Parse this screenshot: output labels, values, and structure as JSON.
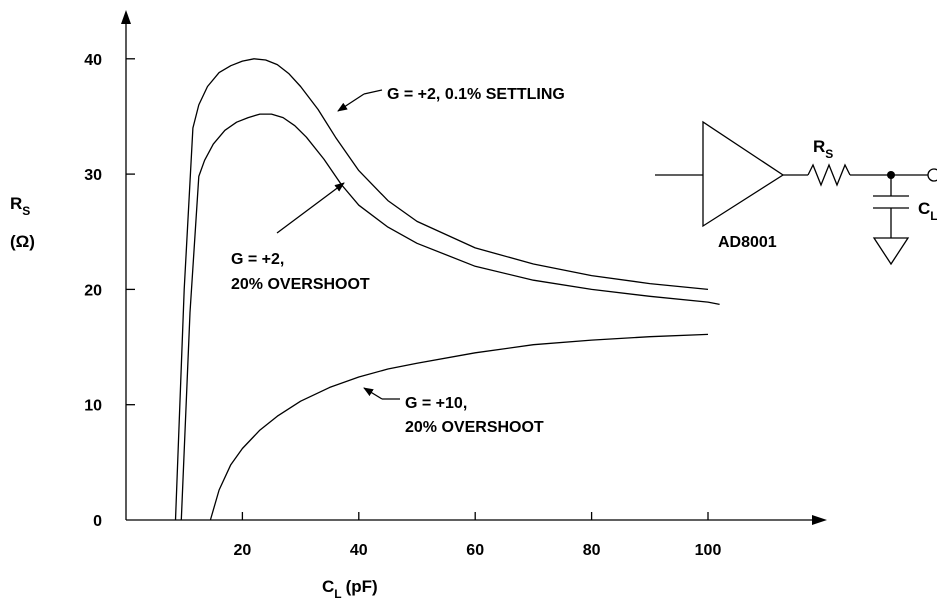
{
  "chart_data": {
    "type": "line",
    "xlabel": "C",
    "xlabel_sub": "L",
    "xlabel_unit": "(pF)",
    "ylabel": "R",
    "ylabel_sub": "S",
    "ylabel_unit": "(Ω)",
    "xlim": [
      0,
      115
    ],
    "ylim": [
      0,
      43
    ],
    "x_ticks": [
      20,
      40,
      60,
      80,
      100
    ],
    "x_tick_labels": [
      "20",
      "40",
      "60",
      "80",
      "100"
    ],
    "y_ticks": [
      0,
      10,
      20,
      30,
      40
    ],
    "y_tick_labels": [
      "0",
      "10",
      "20",
      "30",
      "40"
    ],
    "grid": false,
    "series": [
      {
        "name": "G = +2, 0.1% SETTLING",
        "x": [
          8.5,
          10.0,
          11.5,
          12.5,
          14,
          16,
          18,
          20,
          22,
          24,
          26,
          28,
          30,
          33,
          36,
          40,
          45,
          50,
          60,
          70,
          80,
          90,
          100
        ],
        "y": [
          0,
          20,
          34,
          36,
          37.6,
          38.8,
          39.4,
          39.8,
          40.0,
          39.9,
          39.5,
          38.7,
          37.6,
          35.6,
          33.2,
          30.3,
          27.7,
          25.9,
          23.6,
          22.2,
          21.2,
          20.5,
          20.0
        ]
      },
      {
        "name": "G = +2, 20% OVERSHOOT",
        "x": [
          9.5,
          11.0,
          12.5,
          13.5,
          15,
          17,
          19,
          21,
          23,
          25,
          27,
          29,
          31,
          34,
          37,
          40,
          45,
          50,
          60,
          70,
          80,
          90,
          100,
          102
        ],
        "y": [
          0,
          18,
          29.8,
          31.2,
          32.6,
          33.8,
          34.5,
          34.9,
          35.2,
          35.2,
          34.9,
          34.2,
          33.2,
          31.3,
          29.1,
          27.3,
          25.4,
          24.0,
          22.0,
          20.8,
          20.0,
          19.4,
          18.9,
          18.7
        ]
      },
      {
        "name": "G = +10, 20% OVERSHOOT",
        "x": [
          14.5,
          16,
          18,
          20,
          23,
          26,
          30,
          35,
          40,
          45,
          50,
          60,
          70,
          80,
          90,
          100
        ],
        "y": [
          0,
          2.6,
          4.8,
          6.2,
          7.8,
          9.0,
          10.3,
          11.5,
          12.4,
          13.1,
          13.6,
          14.5,
          15.2,
          15.6,
          15.9,
          16.1
        ]
      }
    ],
    "annotations": [
      {
        "line1": "G = +2, 0.1% SETTLING"
      },
      {
        "line1": "G = +2,",
        "line2": "20% OVERSHOOT"
      },
      {
        "line1": "G = +10,",
        "line2": "20% OVERSHOOT"
      }
    ]
  },
  "schematic": {
    "amp_label": "AD8001",
    "resistor_label": "R",
    "resistor_label_sub": "S",
    "cap_label": "C",
    "cap_label_sub": "L"
  }
}
